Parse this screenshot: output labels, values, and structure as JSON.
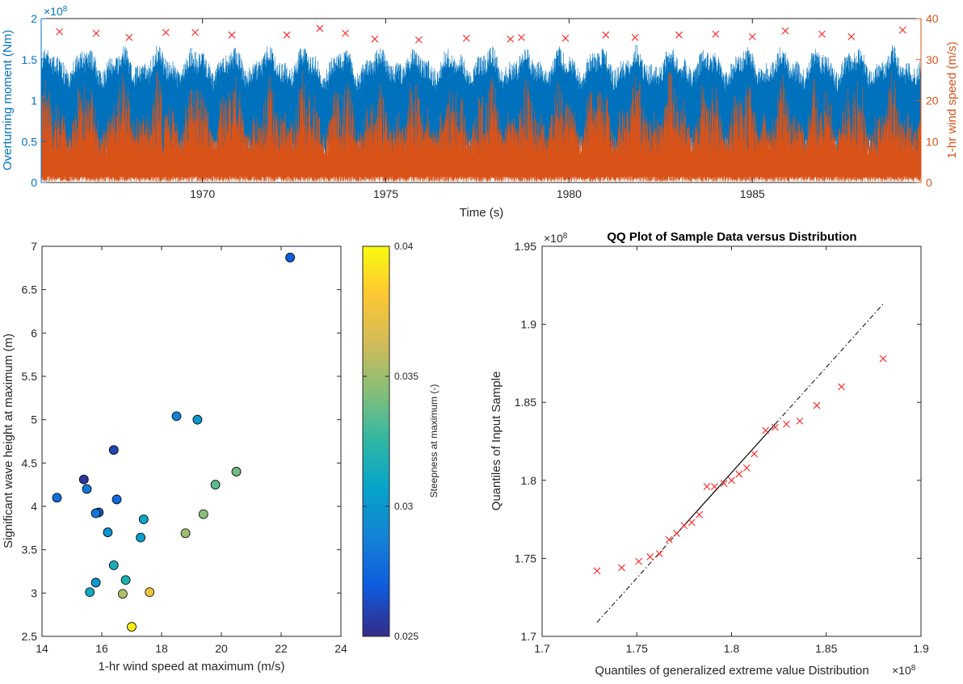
{
  "colors": {
    "moment": "#0072BD",
    "wind": "#D95319",
    "marker": "#FF2020",
    "axis": "#262626",
    "refline": "#000000"
  },
  "chart_data": [
    {
      "id": "timeseries",
      "type": "line",
      "title": "",
      "xlabel": "Time (s)",
      "ylabel_left": "Overturning moment (Nm)",
      "ylabel_right": "1-hr wind speed (m/s)",
      "left_exponent": "×10",
      "left_exponent_power": "8",
      "xlim": [
        1965.6,
        1989.6
      ],
      "ylim_left": [
        0,
        2
      ],
      "ylim_right": [
        0,
        40
      ],
      "xticks": [
        1970,
        1975,
        1980,
        1985
      ],
      "yticks_left": [
        0,
        0.5,
        1,
        1.5,
        2
      ],
      "yticks_right": [
        0,
        10,
        20,
        30,
        40
      ],
      "series": [
        {
          "name": "",
          "axis": "left",
          "description": "overturning moment time series, x1e8 Nm"
        },
        {
          "name": "",
          "axis": "right",
          "description": "1-hr wind speed time series, m/s"
        }
      ],
      "annual_maxima": {
        "x": [
          1966.1,
          1967.1,
          1968.0,
          1969.0,
          1969.8,
          1970.8,
          1972.3,
          1973.2,
          1973.9,
          1974.7,
          1975.9,
          1977.2,
          1978.4,
          1978.7,
          1979.9,
          1981.0,
          1981.8,
          1983.0,
          1984.0,
          1985.0,
          1985.9,
          1986.9,
          1987.7,
          1989.1
        ],
        "y": [
          1.84,
          1.82,
          1.77,
          1.83,
          1.83,
          1.8,
          1.8,
          1.88,
          1.82,
          1.75,
          1.74,
          1.76,
          1.75,
          1.77,
          1.76,
          1.8,
          1.77,
          1.8,
          1.81,
          1.78,
          1.85,
          1.81,
          1.78,
          1.86
        ]
      }
    },
    {
      "id": "scatter",
      "type": "scatter",
      "title": "",
      "xlabel": "1-hr wind speed at maximum (m/s)",
      "ylabel": "Significant wave height at maximum (m)",
      "colorbar_label": "Steepness at maximum (-)",
      "xlim": [
        14,
        24
      ],
      "ylim": [
        2.5,
        7
      ],
      "clim": [
        0.025,
        0.04
      ],
      "xticks": [
        14,
        16,
        18,
        20,
        22,
        24
      ],
      "yticks": [
        2.5,
        3,
        3.5,
        4,
        4.5,
        5,
        5.5,
        6,
        6.5,
        7
      ],
      "cticks": [
        "0.025",
        "0.03",
        "0.035",
        "0.04"
      ],
      "points": [
        {
          "x": 22.3,
          "y": 6.87,
          "c": 0.027
        },
        {
          "x": 18.5,
          "y": 5.04,
          "c": 0.0288
        },
        {
          "x": 19.2,
          "y": 5.0,
          "c": 0.03
        },
        {
          "x": 16.4,
          "y": 4.65,
          "c": 0.026
        },
        {
          "x": 20.5,
          "y": 4.4,
          "c": 0.034
        },
        {
          "x": 15.4,
          "y": 4.31,
          "c": 0.0255
        },
        {
          "x": 19.8,
          "y": 4.25,
          "c": 0.0335
        },
        {
          "x": 15.5,
          "y": 4.2,
          "c": 0.0283
        },
        {
          "x": 14.5,
          "y": 4.1,
          "c": 0.0278
        },
        {
          "x": 16.5,
          "y": 4.08,
          "c": 0.0275
        },
        {
          "x": 15.9,
          "y": 3.93,
          "c": 0.0268
        },
        {
          "x": 15.8,
          "y": 3.92,
          "c": 0.0282
        },
        {
          "x": 19.4,
          "y": 3.91,
          "c": 0.0345
        },
        {
          "x": 17.4,
          "y": 3.85,
          "c": 0.031
        },
        {
          "x": 16.2,
          "y": 3.7,
          "c": 0.0298
        },
        {
          "x": 18.8,
          "y": 3.69,
          "c": 0.035
        },
        {
          "x": 17.3,
          "y": 3.64,
          "c": 0.0305
        },
        {
          "x": 16.4,
          "y": 3.32,
          "c": 0.0315
        },
        {
          "x": 16.8,
          "y": 3.15,
          "c": 0.0318
        },
        {
          "x": 15.8,
          "y": 3.12,
          "c": 0.03
        },
        {
          "x": 15.6,
          "y": 3.01,
          "c": 0.0312
        },
        {
          "x": 16.7,
          "y": 2.99,
          "c": 0.0355
        },
        {
          "x": 17.6,
          "y": 3.01,
          "c": 0.0375
        },
        {
          "x": 17.0,
          "y": 2.61,
          "c": 0.0395
        }
      ]
    },
    {
      "id": "qqplot",
      "type": "scatter",
      "title": "QQ Plot of Sample Data versus Distribution",
      "xlabel": "Quantiles of generalized extreme value Distribution",
      "ylabel": "Quantiles of Input Sample",
      "x_exponent": "×10",
      "x_exponent_power": "8",
      "y_exponent": "×10",
      "y_exponent_power": "8",
      "xlim": [
        1.7,
        1.9
      ],
      "ylim": [
        1.7,
        1.95
      ],
      "xticks": [
        "1.7",
        "1.75",
        "1.8",
        "1.85",
        "1.9"
      ],
      "yticks": [
        "1.7",
        "1.75",
        "1.8",
        "1.85",
        "1.9",
        "1.95"
      ],
      "points": {
        "x": [
          1.729,
          1.742,
          1.751,
          1.757,
          1.762,
          1.767,
          1.771,
          1.775,
          1.779,
          1.783,
          1.787,
          1.791,
          1.796,
          1.8,
          1.804,
          1.808,
          1.812,
          1.818,
          1.823,
          1.829,
          1.836,
          1.845,
          1.858,
          1.88
        ],
        "y": [
          1.742,
          1.744,
          1.748,
          1.751,
          1.753,
          1.762,
          1.766,
          1.771,
          1.773,
          1.778,
          1.796,
          1.796,
          1.798,
          1.8,
          1.804,
          1.808,
          1.817,
          1.832,
          1.834,
          1.836,
          1.838,
          1.848,
          1.86,
          1.878
        ]
      },
      "reference_line": {
        "x": [
          1.729,
          1.88
        ],
        "y": [
          1.709,
          1.913
        ]
      }
    }
  ]
}
